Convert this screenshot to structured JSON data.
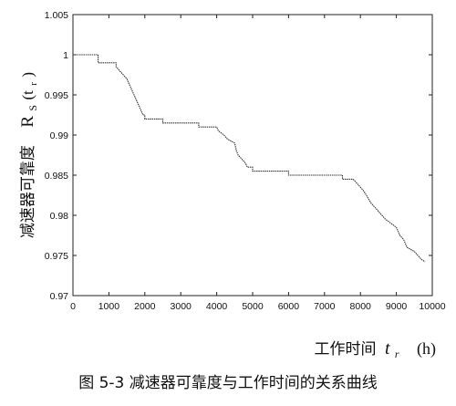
{
  "caption": "图 5-3 减速器可靠度与工作时间的关系曲线",
  "chart_data": {
    "type": "line",
    "xlabel": "工作时间",
    "xlabel_symbol": "t",
    "xlabel_subscript": "r",
    "xlabel_unit": "(h)",
    "ylabel": "减速器可靠度",
    "ylabel_symbol": "R",
    "ylabel_subscript": "S",
    "ylabel_argument": "(t",
    "ylabel_argument_subscript": "r",
    "ylabel_close": ")",
    "xlim": [
      0,
      10000
    ],
    "ylim": [
      0.97,
      1.005
    ],
    "xticks": [
      0,
      1000,
      2000,
      3000,
      4000,
      5000,
      6000,
      7000,
      8000,
      9000,
      10000
    ],
    "yticks": [
      0.97,
      0.975,
      0.98,
      0.985,
      0.99,
      0.995,
      1,
      1.005
    ],
    "xtick_labels": [
      "0",
      "1000",
      "2000",
      "3000",
      "4000",
      "5000",
      "6000",
      "7000",
      "8000",
      "9000",
      "10000"
    ],
    "ytick_labels": [
      "0.97",
      "0.975",
      "0.98",
      "0.985",
      "0.99",
      "0.995",
      "1",
      "1.005"
    ],
    "grid": false,
    "series": [
      {
        "color": "#333333",
        "x": [
          0,
          700,
          700,
          1200,
          1200,
          1300,
          1400,
          1500,
          1600,
          1700,
          1800,
          1850,
          1900,
          1950,
          2000,
          2000,
          2500,
          2500,
          3500,
          3500,
          4000,
          4050,
          4200,
          4300,
          4500,
          4550,
          4600,
          4700,
          4800,
          4850,
          5000,
          5000,
          6000,
          6000,
          7500,
          7500,
          7800,
          7900,
          8000,
          8100,
          8300,
          8400,
          8600,
          8700,
          9000,
          9100,
          9200,
          9300,
          9500,
          9600,
          9700,
          9800
        ],
        "y": [
          1.0,
          1.0,
          0.999,
          0.999,
          0.9985,
          0.998,
          0.9975,
          0.997,
          0.996,
          0.995,
          0.994,
          0.9935,
          0.993,
          0.9925,
          0.9925,
          0.992,
          0.992,
          0.9915,
          0.9915,
          0.991,
          0.991,
          0.9905,
          0.99,
          0.9895,
          0.989,
          0.988,
          0.9875,
          0.987,
          0.9865,
          0.986,
          0.986,
          0.9855,
          0.9855,
          0.985,
          0.985,
          0.9845,
          0.9845,
          0.984,
          0.9835,
          0.983,
          0.9815,
          0.981,
          0.98,
          0.9795,
          0.9785,
          0.9775,
          0.977,
          0.976,
          0.9755,
          0.975,
          0.9745,
          0.9742
        ]
      }
    ]
  }
}
